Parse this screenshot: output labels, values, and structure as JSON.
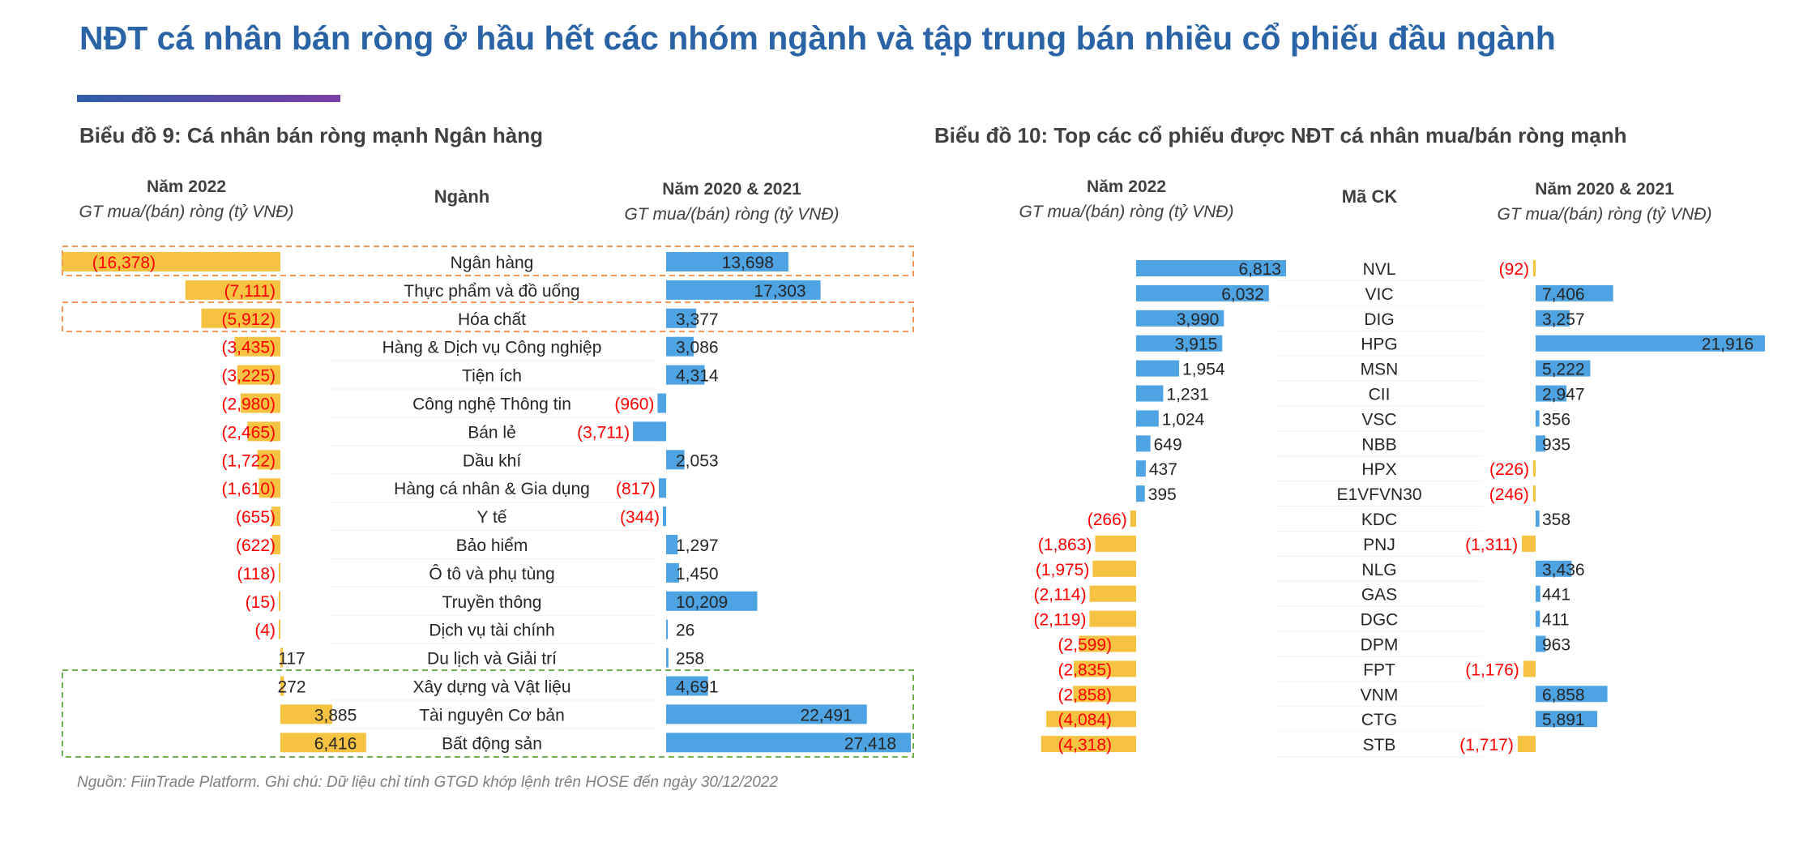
{
  "page": {
    "title": "NĐT cá nhân bán ròng ở hầu hết các nhóm ngành và tập trung bán nhiều cổ phiếu đầu ngành",
    "source_prefix": "Nguồn: FiinTrade Platform. Ghi chú:",
    "source_note": "Dữ liệu chỉ tính GTGD khớp lệnh trên HOSE đến ngày 30/12/2022"
  },
  "colors": {
    "negative_bar": "#f5c242",
    "positive_bar": "#4ea3e3",
    "negative_text": "#ff0000",
    "title": "#2a64a6"
  },
  "chart_data": [
    {
      "type": "bar",
      "title": "Biểu đồ 9: Cá nhân bán ròng mạnh Ngân hàng",
      "left_header": "Năm 2022",
      "left_subheader": "GT mua/(bán) ròng (tỷ VNĐ)",
      "center_header": "Ngành",
      "right_header": "Năm 2020 & 2021",
      "right_subheader": "GT mua/(bán) ròng (tỷ VNĐ)",
      "categories": [
        "Ngân hàng",
        "Thực phẩm và đồ uống",
        "Hóa chất",
        "Hàng & Dịch vụ Công nghiệp",
        "Tiện ích",
        "Công nghệ Thông tin",
        "Bán lẻ",
        "Dầu khí",
        "Hàng cá nhân & Gia dụng",
        "Y tế",
        "Bảo hiểm",
        "Ô tô và phụ tùng",
        "Truyền thông",
        "Dịch vụ tài chính",
        "Du lịch và Giải trí",
        "Xây dựng và Vật liệu",
        "Tài nguyên Cơ bản",
        "Bất động sản"
      ],
      "series": [
        {
          "name": "Năm 2022",
          "values": [
            -16378,
            -7111,
            -5912,
            -3435,
            -3225,
            -2980,
            -2465,
            -1722,
            -1610,
            -655,
            -622,
            -118,
            -15,
            -4,
            117,
            272,
            3885,
            6416
          ],
          "labels": [
            "(16,378)",
            "(7,111)",
            "(5,912)",
            "(3,435)",
            "(3,225)",
            "(2,980)",
            "(2,465)",
            "(1,722)",
            "(1,610)",
            "(655)",
            "(622)",
            "(118)",
            "(15)",
            "(4)",
            "117",
            "272",
            "3,885",
            "6,416"
          ]
        },
        {
          "name": "Năm 2020 & 2021",
          "values": [
            13698,
            17303,
            3377,
            3086,
            4314,
            -960,
            -3711,
            2053,
            -817,
            -344,
            1297,
            1450,
            10209,
            26,
            258,
            4691,
            22491,
            27418
          ],
          "labels": [
            "13,698",
            "17,303",
            "3,377",
            "3,086",
            "4,314",
            "(960)",
            "(3,711)",
            "2,053",
            "(817)",
            "(344)",
            "1,297",
            "1,450",
            "10,209",
            "26",
            "258",
            "4,691",
            "22,491",
            "27,418"
          ]
        }
      ]
    },
    {
      "type": "bar",
      "title": "Biểu đồ 10: Top các cổ phiếu được NĐT cá nhân mua/bán ròng mạnh",
      "left_header": "Năm 2022",
      "left_subheader": "GT mua/(bán) ròng (tỷ VNĐ)",
      "center_header": "Mã CK",
      "right_header": "Năm 2020 & 2021",
      "right_subheader": "GT mua/(bán) ròng (tỷ VNĐ)",
      "categories": [
        "NVL",
        "VIC",
        "DIG",
        "HPG",
        "MSN",
        "CII",
        "VSC",
        "NBB",
        "HPX",
        "E1VFVN30",
        "KDC",
        "PNJ",
        "NLG",
        "GAS",
        "DGC",
        "DPM",
        "FPT",
        "VNM",
        "CTG",
        "STB"
      ],
      "series": [
        {
          "name": "Năm 2022",
          "values": [
            6813,
            6032,
            3990,
            3915,
            1954,
            1231,
            1024,
            649,
            437,
            395,
            -266,
            -1863,
            -1975,
            -2114,
            -2119,
            -2599,
            -2835,
            -2858,
            -4084,
            -4318
          ],
          "labels": [
            "6,813",
            "6,032",
            "3,990",
            "3,915",
            "1,954",
            "1,231",
            "1,024",
            "649",
            "437",
            "395",
            "(266)",
            "(1,863)",
            "(1,975)",
            "(2,114)",
            "(2,119)",
            "(2,599)",
            "(2,835)",
            "(2,858)",
            "(4,084)",
            "(4,318)"
          ]
        },
        {
          "name": "Năm 2020 & 2021",
          "values": [
            -92,
            7406,
            3257,
            21916,
            5222,
            2947,
            356,
            935,
            -226,
            -246,
            358,
            -1311,
            3436,
            441,
            411,
            963,
            -1176,
            6858,
            5891,
            -1717
          ],
          "labels": [
            "(92)",
            "7,406",
            "3,257",
            "21,916",
            "5,222",
            "2,947",
            "356",
            "935",
            "(226)",
            "(246)",
            "358",
            "(1,311)",
            "3,436",
            "441",
            "411",
            "963",
            "(1,176)",
            "6,858",
            "5,891",
            "(1,717)"
          ]
        }
      ]
    }
  ]
}
